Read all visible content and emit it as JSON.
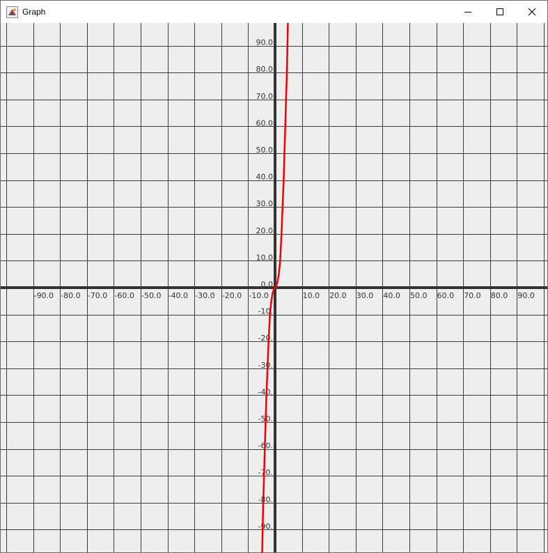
{
  "window": {
    "title": "Graph",
    "icons": {
      "app": "java-app-icon",
      "minimize": "minimize-icon",
      "maximize": "maximize-icon",
      "close": "close-icon"
    }
  },
  "chart_data": {
    "type": "line",
    "xlim": [
      -100,
      100
    ],
    "ylim": [
      -100,
      100
    ],
    "grid": true,
    "grid_step": 10,
    "x_tick_labels": [
      "-90.0",
      "-80.0",
      "-70.0",
      "-60.0",
      "-50.0",
      "-40.0",
      "-30.0",
      "-20.0",
      "-10.0",
      "10.0",
      "20.0",
      "30.0",
      "40.0",
      "50.0",
      "60.0",
      "70.0",
      "80.0",
      "90.0"
    ],
    "y_tick_labels": [
      "90.0",
      "80.0",
      "70.0",
      "60.0",
      "50.0",
      "40.0",
      "30.0",
      "20.0",
      "10.0",
      "0.0",
      "-10.",
      "-20.",
      "-30.",
      "-40.",
      "-50.",
      "-60.",
      "-70.",
      "-80.",
      "-90."
    ],
    "series": [
      {
        "color": "#ee0000",
        "x": [
          -4.8,
          -4.6,
          -4.4,
          -4.1,
          -3.8,
          -3.5,
          -3.2,
          -2.8,
          -2.4,
          -1.9,
          -1.4,
          -0.9,
          -0.4,
          0,
          0.4,
          0.9,
          1.4,
          1.9,
          2.4,
          2.8,
          3.2,
          3.5,
          3.8,
          4.1,
          4.4,
          4.6,
          4.8
        ],
        "y": [
          -99,
          -90,
          -80,
          -70,
          -60,
          -50,
          -40,
          -30,
          -20,
          -10,
          -5,
          -2,
          -0.5,
          0,
          0.5,
          2,
          5,
          10,
          20,
          30,
          40,
          50,
          60,
          70,
          80,
          90,
          99
        ]
      }
    ]
  }
}
